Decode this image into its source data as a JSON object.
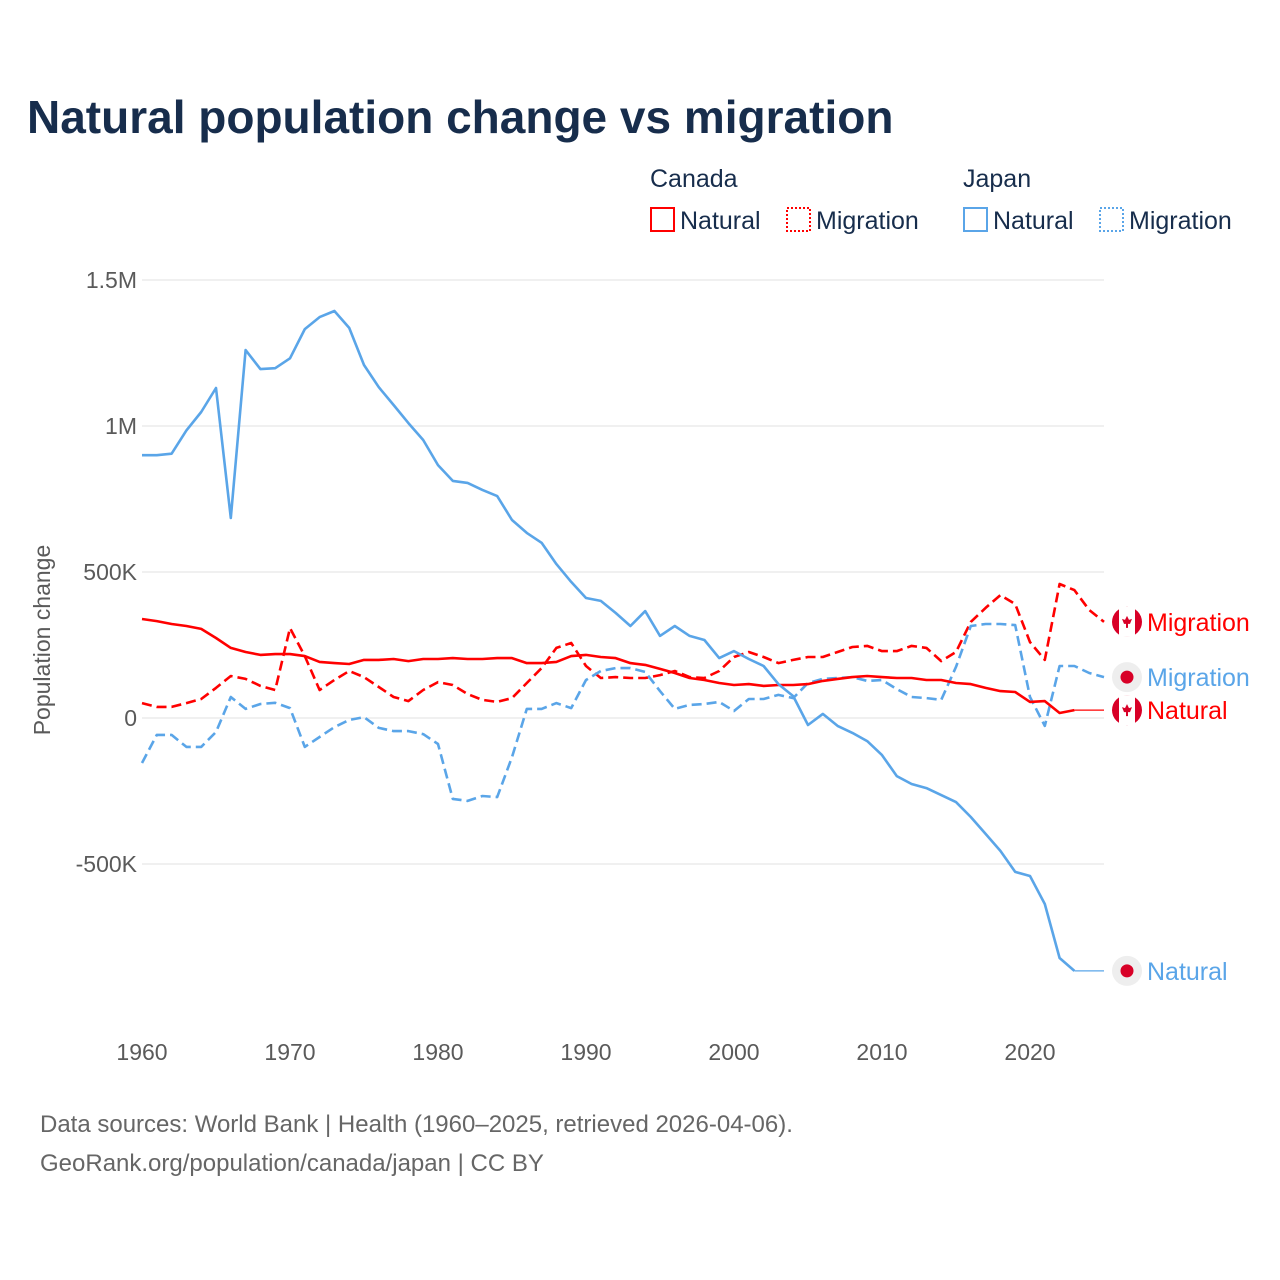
{
  "title": "Natural population change vs migration",
  "legend": {
    "groups": [
      {
        "label": "Canada",
        "items": [
          {
            "label": "Natural",
            "style": "solid"
          },
          {
            "label": "Migration",
            "style": "dotted"
          }
        ],
        "color": "#ff0000"
      },
      {
        "label": "Japan",
        "items": [
          {
            "label": "Natural",
            "style": "solid"
          },
          {
            "label": "Migration",
            "style": "dotted"
          }
        ],
        "color": "#5aa5e8"
      }
    ]
  },
  "footer": {
    "line1": "Data sources: World Bank | Health (1960–2025, retrieved 2026-04-06).",
    "line2": "GeoRank.org/population/canada/japan | CC BY"
  },
  "chart_data": {
    "type": "line",
    "title": "Natural population change vs migration",
    "xlabel": "",
    "ylabel": "Population change",
    "xlim": [
      1960,
      2025
    ],
    "ylim": [
      -1000000,
      1500000
    ],
    "x_ticks": [
      1960,
      1970,
      1980,
      1990,
      2000,
      2010,
      2020
    ],
    "y_ticks": [
      {
        "value": 1500000,
        "label": "1.5M"
      },
      {
        "value": 1000000,
        "label": "1M"
      },
      {
        "value": 500000,
        "label": "500K"
      },
      {
        "value": 0,
        "label": "0"
      },
      {
        "value": -500000,
        "label": "-500K"
      }
    ],
    "grid": true,
    "start_year": 1960,
    "series": [
      {
        "name": "Canada Migration",
        "end_label": "Migration",
        "country": "canada",
        "color": "#ff0000",
        "dashed": true,
        "values": [
          51,
          38,
          38,
          51,
          65,
          103,
          144,
          134,
          110,
          96,
          308,
          212,
          96,
          130,
          161,
          140,
          106,
          72,
          58,
          96,
          123,
          113,
          82,
          62,
          55,
          68,
          120,
          171,
          240,
          257,
          178,
          137,
          140,
          137,
          137,
          147,
          161,
          140,
          137,
          161,
          209,
          226,
          209,
          188,
          199,
          209,
          209,
          226,
          243,
          247,
          229,
          229,
          247,
          240,
          195,
          226,
          329,
          377,
          421,
          390,
          260,
          199,
          459,
          438,
          370,
          329
        ]
      },
      {
        "name": "Japan Migration",
        "end_label": "Migration",
        "country": "japan",
        "color": "#5aa5e8",
        "dashed": true,
        "values": [
          -154,
          -58,
          -58,
          -99,
          -99,
          -48,
          72,
          31,
          48,
          52,
          34,
          -99,
          -65,
          -31,
          -7,
          3,
          -34,
          -45,
          -45,
          -55,
          -89,
          -277,
          -284,
          -267,
          -271,
          -134,
          31,
          31,
          51,
          34,
          130,
          161,
          171,
          171,
          158,
          92,
          31,
          45,
          48,
          55,
          24,
          65,
          65,
          79,
          68,
          120,
          134,
          137,
          140,
          127,
          130,
          99,
          72,
          68,
          62,
          175,
          315,
          322,
          322,
          318,
          72,
          -27,
          178,
          178,
          154,
          140
        ]
      },
      {
        "name": "Canada Natural",
        "end_label": "Natural",
        "country": "canada",
        "color": "#ff0000",
        "dashed": false,
        "values": [
          339,
          332,
          322,
          315,
          305,
          274,
          240,
          226,
          216,
          219,
          219,
          212,
          192,
          188,
          185,
          199,
          199,
          202,
          195,
          202,
          202,
          205,
          202,
          202,
          205,
          205,
          188,
          188,
          192,
          212,
          216,
          209,
          205,
          188,
          182,
          168,
          154,
          137,
          130,
          120,
          113,
          116,
          110,
          113,
          113,
          116,
          127,
          134,
          140,
          144,
          140,
          137,
          137,
          130,
          130,
          120,
          116,
          103,
          92,
          89,
          55,
          58,
          17,
          27
        ]
      },
      {
        "name": "Japan Natural",
        "end_label": "Natural",
        "country": "japan",
        "color": "#5aa5e8",
        "dashed": false,
        "values": [
          900,
          900,
          905,
          985,
          1048,
          1130,
          685,
          1260,
          1195,
          1198,
          1232,
          1332,
          1373,
          1394,
          1336,
          1209,
          1133,
          1072,
          1010,
          952,
          866,
          812,
          805,
          781,
          760,
          678,
          634,
          600,
          527,
          466,
          411,
          401,
          360,
          315,
          366,
          281,
          315,
          281,
          267,
          205,
          229,
          202,
          178,
          116,
          75,
          -24,
          14,
          -27,
          -51,
          -79,
          -127,
          -199,
          -226,
          -240,
          -264,
          -288,
          -339,
          -397,
          -455,
          -527,
          -541,
          -637,
          -822,
          -866
        ]
      }
    ],
    "value_unit": "thousands"
  }
}
